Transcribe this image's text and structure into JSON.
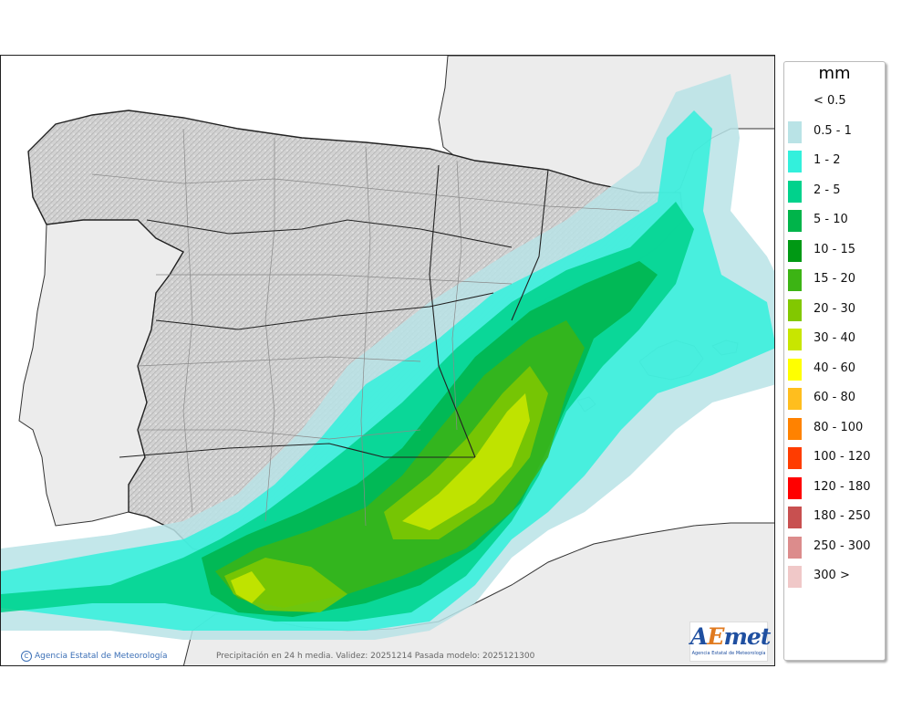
{
  "map": {
    "legend_title": "mm",
    "legend": [
      {
        "label": "< 0.5",
        "color": "#ffffff"
      },
      {
        "label": "0.5 - 1",
        "color": "#b9e3e6"
      },
      {
        "label": "1 - 2",
        "color": "#33f0dc"
      },
      {
        "label": "2 - 5",
        "color": "#00d28c"
      },
      {
        "label": "5 - 10",
        "color": "#00b44a"
      },
      {
        "label": "10 - 15",
        "color": "#009914"
      },
      {
        "label": "15 - 20",
        "color": "#3cb414"
      },
      {
        "label": "20 - 30",
        "color": "#82c800"
      },
      {
        "label": "30 - 40",
        "color": "#c8e600"
      },
      {
        "label": "40 - 60",
        "color": "#ffff00"
      },
      {
        "label": "60 - 80",
        "color": "#ffbe1e"
      },
      {
        "label": "80 - 100",
        "color": "#ff8200"
      },
      {
        "label": "100 - 120",
        "color": "#ff3c00"
      },
      {
        "label": "120 - 180",
        "color": "#ff0000"
      },
      {
        "label": "180 - 250",
        "color": "#c85050"
      },
      {
        "label": "250 - 300",
        "color": "#dc8c8c"
      },
      {
        "label": "300 >",
        "color": "#f0c8c8"
      }
    ],
    "credit_left": "Agencia Estatal de Meteorología",
    "credit_center": "Precipitación en 24 h media. Validez: 20251214 Pasada modelo: 2025121300",
    "logo_word_a": "A",
    "logo_word_e": "E",
    "logo_word_rest": "met",
    "logo_sub": "Agencia Estatal de Meteorología",
    "colors": {
      "sea": "#ffffff",
      "land": "#d6d6d6",
      "foreign_land": "#ececec",
      "borders": "#222222",
      "province_lines": "#8a8a8a"
    }
  }
}
